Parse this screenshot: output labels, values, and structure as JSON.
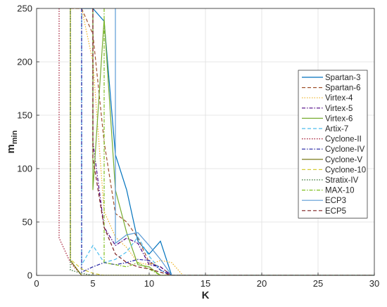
{
  "chart_data": {
    "type": "line",
    "xlabel": "K",
    "ylabel_main": "m",
    "ylabel_sub": "min",
    "xlim": [
      0,
      30
    ],
    "ylim": [
      0,
      250
    ],
    "xticks": [
      0,
      5,
      10,
      15,
      20,
      25,
      30
    ],
    "yticks": [
      0,
      50,
      100,
      150,
      200,
      250
    ],
    "grid": true,
    "legend_position": "top-right",
    "series": [
      {
        "name": "Spartan-3",
        "color": "#0072BD",
        "dash": "",
        "points": [
          [
            4,
            250
          ],
          [
            5,
            250
          ],
          [
            6,
            238
          ],
          [
            7,
            113
          ],
          [
            8,
            80
          ],
          [
            9,
            32
          ],
          [
            10,
            20
          ],
          [
            11,
            32
          ],
          [
            12,
            0
          ],
          [
            30,
            0
          ]
        ]
      },
      {
        "name": "Spartan-6",
        "color": "#A0522D",
        "dash": "5,3",
        "points": [
          [
            3,
            250
          ],
          [
            4,
            250
          ],
          [
            5,
            226
          ],
          [
            6,
            125
          ],
          [
            7,
            58
          ],
          [
            8,
            50
          ],
          [
            9,
            35
          ],
          [
            10,
            12
          ],
          [
            11,
            8
          ],
          [
            12,
            0
          ],
          [
            30,
            0
          ]
        ]
      },
      {
        "name": "Virtex-4",
        "color": "#EDB120",
        "dash": "1.5,2",
        "points": [
          [
            3,
            250
          ],
          [
            4,
            250
          ],
          [
            5,
            200
          ],
          [
            6,
            60
          ],
          [
            7,
            36
          ],
          [
            8,
            26
          ],
          [
            9,
            12
          ],
          [
            10,
            10
          ],
          [
            11,
            14
          ],
          [
            12,
            12
          ],
          [
            13,
            0
          ],
          [
            30,
            0
          ]
        ]
      },
      {
        "name": "Virtex-5",
        "color": "#4B0082",
        "dash": "5,2,1.5,2",
        "points": [
          [
            5,
            250
          ],
          [
            5,
            125
          ],
          [
            6,
            45
          ],
          [
            7,
            28
          ],
          [
            8,
            35
          ],
          [
            9,
            30
          ],
          [
            10,
            10
          ],
          [
            11,
            8
          ],
          [
            12,
            0
          ],
          [
            30,
            0
          ]
        ]
      },
      {
        "name": "Virtex-6",
        "color": "#77AC30",
        "dash": "",
        "points": [
          [
            5,
            250
          ],
          [
            5,
            80
          ],
          [
            6,
            240
          ],
          [
            7,
            80
          ],
          [
            8,
            40
          ],
          [
            9,
            10
          ],
          [
            10,
            8
          ],
          [
            11,
            0
          ],
          [
            30,
            0
          ]
        ]
      },
      {
        "name": "Artix-7",
        "color": "#4DBEEE",
        "dash": "5,3",
        "points": [
          [
            4,
            250
          ],
          [
            4,
            10
          ],
          [
            5,
            28
          ],
          [
            6,
            12
          ],
          [
            7,
            15
          ],
          [
            8,
            22
          ],
          [
            9,
            36
          ],
          [
            10,
            18
          ],
          [
            11,
            5
          ],
          [
            12,
            0
          ],
          [
            30,
            0
          ]
        ]
      },
      {
        "name": "Cyclone-II",
        "color": "#A2142F",
        "dash": "1.5,2",
        "points": [
          [
            2,
            250
          ],
          [
            2,
            35
          ],
          [
            3,
            12
          ],
          [
            4,
            0
          ],
          [
            30,
            0
          ]
        ]
      },
      {
        "name": "Cyclone-IV",
        "color": "#1F1FA0",
        "dash": "5,2,1.5,2",
        "points": [
          [
            4,
            250
          ],
          [
            4,
            3
          ],
          [
            5,
            8
          ],
          [
            6,
            12
          ],
          [
            7,
            10
          ],
          [
            8,
            12
          ],
          [
            9,
            15
          ],
          [
            10,
            14
          ],
          [
            11,
            5
          ],
          [
            12,
            0
          ],
          [
            30,
            0
          ]
        ]
      },
      {
        "name": "Cyclone-V",
        "color": "#6B6B00",
        "dash": "",
        "points": [
          [
            3,
            250
          ],
          [
            3,
            14
          ],
          [
            4,
            0
          ],
          [
            5,
            0
          ],
          [
            6,
            0
          ],
          [
            30,
            0
          ]
        ]
      },
      {
        "name": "Cyclone-10",
        "color": "#D4CC35",
        "dash": "5,3",
        "points": [
          [
            3,
            250
          ],
          [
            3,
            15
          ],
          [
            4,
            6
          ],
          [
            5,
            2
          ],
          [
            6,
            0
          ],
          [
            30,
            0
          ]
        ]
      },
      {
        "name": "Stratix-IV",
        "color": "#2E6E2E",
        "dash": "1.5,2",
        "points": [
          [
            3,
            250
          ],
          [
            3,
            5
          ],
          [
            4,
            2
          ],
          [
            5,
            0
          ],
          [
            30,
            0
          ]
        ]
      },
      {
        "name": "MAX-10",
        "color": "#7FBF1F",
        "dash": "5,2,1.5,2",
        "points": [
          [
            6,
            250
          ],
          [
            6,
            12
          ],
          [
            7,
            10
          ],
          [
            8,
            8
          ],
          [
            9,
            12
          ],
          [
            10,
            6
          ],
          [
            11,
            0
          ],
          [
            30,
            0
          ]
        ]
      },
      {
        "name": "ECP3",
        "color": "#5B9BD5",
        "dash": "",
        "points": [
          [
            7,
            250
          ],
          [
            7,
            30
          ],
          [
            8,
            38
          ],
          [
            9,
            40
          ],
          [
            10,
            28
          ],
          [
            11,
            15
          ],
          [
            12,
            0
          ],
          [
            30,
            0
          ]
        ]
      },
      {
        "name": "ECP5",
        "color": "#7B1F1F",
        "dash": "5,3",
        "points": [
          [
            5,
            250
          ],
          [
            5,
            110
          ],
          [
            6,
            45
          ],
          [
            7,
            20
          ],
          [
            8,
            12
          ],
          [
            9,
            8
          ],
          [
            10,
            6
          ],
          [
            11,
            3
          ],
          [
            12,
            0
          ],
          [
            30,
            0
          ]
        ]
      }
    ]
  }
}
